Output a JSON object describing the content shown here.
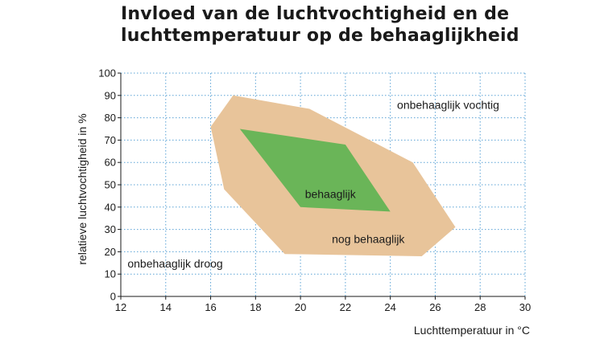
{
  "title_lines": [
    "Invloed van de luchtvochtigheid en de",
    "luchttemperatuur op de behaaglijkheid"
  ],
  "colors": {
    "grid": "#5ba3d6",
    "axis": "#1a1a1a",
    "nog_behaaglijk_fill": "#e8c49a",
    "behaaglijk_fill": "#6ab558"
  },
  "chart_data": {
    "type": "area",
    "title": "Invloed van de luchtvochtigheid en de luchttemperatuur op de behaaglijkheid",
    "xlabel": "Luchttemperatuur in °C",
    "ylabel": "relatieve luchtvochtigheid in %",
    "xlim": [
      12,
      30
    ],
    "ylim": [
      0,
      100
    ],
    "xticks": [
      12,
      14,
      16,
      18,
      20,
      22,
      24,
      26,
      28,
      30
    ],
    "yticks": [
      0,
      10,
      20,
      30,
      40,
      50,
      60,
      70,
      80,
      90,
      100
    ],
    "grid": true,
    "regions": [
      {
        "name": "nog behaaglijk",
        "color": "#e8c49a",
        "polygon": [
          [
            16.0,
            76
          ],
          [
            17.0,
            90
          ],
          [
            20.4,
            84
          ],
          [
            25.0,
            60
          ],
          [
            26.9,
            31
          ],
          [
            25.4,
            18
          ],
          [
            19.3,
            19
          ],
          [
            16.6,
            48
          ]
        ]
      },
      {
        "name": "behaaglijk",
        "color": "#6ab558",
        "polygon": [
          [
            17.3,
            75
          ],
          [
            22.0,
            68
          ],
          [
            24.0,
            38
          ],
          [
            20.0,
            40
          ]
        ]
      }
    ],
    "annotations": [
      {
        "text": "onbehaaglijk vochtig",
        "x": 24.3,
        "y": 84
      },
      {
        "text": "behaaglijk",
        "x": 20.2,
        "y": 44
      },
      {
        "text": "nog behaaglijk",
        "x": 21.4,
        "y": 24
      },
      {
        "text": "onbehaaglijk droog",
        "x": 12.3,
        "y": 13
      }
    ]
  }
}
